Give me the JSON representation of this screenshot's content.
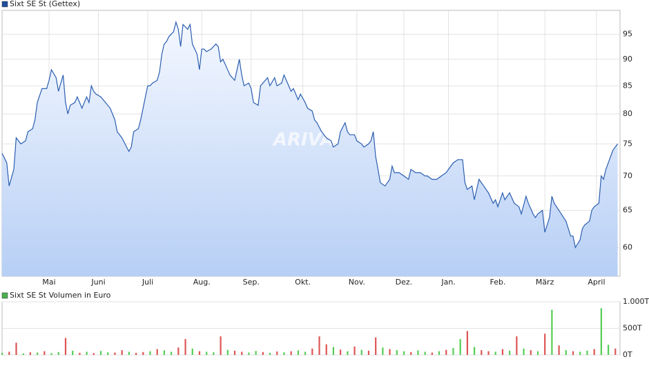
{
  "chart_data": [
    {
      "type": "line",
      "legend": "Sixt SE St (Gettex)",
      "legend_color": "#1f4e9c",
      "watermark": "ARIVA",
      "log_scale": true,
      "grid": true,
      "x": [
        0,
        2,
        3,
        5,
        6,
        8,
        10,
        11,
        13,
        14,
        15,
        17,
        19,
        20,
        21,
        23,
        24,
        26,
        27,
        28,
        29,
        31,
        32,
        33,
        34,
        36,
        37,
        38,
        39,
        40,
        42,
        44,
        46,
        47,
        48,
        49,
        51,
        53,
        54,
        55,
        56,
        58,
        59,
        61,
        62,
        63,
        64,
        66,
        67,
        68,
        69,
        70,
        71,
        73,
        74,
        75,
        76,
        77,
        79,
        80,
        81,
        83,
        84,
        85,
        86,
        87,
        89,
        91,
        92,
        93,
        94,
        96,
        97,
        99,
        100,
        101,
        102,
        103,
        105,
        106,
        107,
        109,
        110,
        111,
        113,
        114,
        116,
        117,
        119,
        120,
        121,
        123,
        124,
        126,
        127,
        129,
        130,
        132,
        133,
        134,
        136,
        138,
        140,
        141,
        143,
        144,
        146,
        147,
        148,
        150,
        151,
        153,
        154,
        156,
        157,
        158,
        159,
        160,
        161,
        163,
        164,
        165,
        166,
        167,
        169,
        171,
        173,
        174,
        176,
        178,
        180,
        181,
        183,
        185,
        187,
        189,
        190,
        192,
        194,
        196,
        197,
        198,
        200,
        201,
        203,
        205,
        207,
        209,
        210,
        211,
        213,
        214,
        216,
        218,
        220,
        221,
        223,
        224,
        226,
        227,
        228,
        230,
        231,
        233,
        234,
        235,
        237,
        239,
        240,
        241,
        242,
        243,
        244,
        246,
        247,
        248,
        250,
        251,
        252,
        254,
        255,
        256,
        257,
        259,
        260,
        261,
        262
      ],
      "series": [
        {
          "name": "Sixt SE St",
          "color": "#2a5db0",
          "values": [
            73.5,
            72,
            68.5,
            71,
            76,
            75,
            75.5,
            77,
            77.5,
            79,
            82,
            84.5,
            84.5,
            86,
            88,
            86.5,
            84,
            87,
            82,
            80,
            81.5,
            82,
            83,
            82,
            81,
            83,
            82,
            85,
            84,
            83.5,
            83,
            82,
            81,
            80,
            79,
            77,
            76,
            74.5,
            73.8,
            74.5,
            77,
            77.5,
            79,
            83,
            85,
            85,
            85.5,
            86,
            87.5,
            91,
            93,
            93.5,
            94.5,
            95.5,
            97.5,
            96,
            92.5,
            97,
            96,
            97,
            93,
            91,
            88,
            92,
            92,
            91.5,
            92,
            93,
            92.5,
            89.5,
            90,
            88,
            87,
            86,
            88,
            90,
            87,
            85,
            85.5,
            84.5,
            82,
            81.5,
            85,
            85.5,
            86.5,
            85,
            86.5,
            85,
            85.5,
            87,
            86,
            84,
            84.5,
            82.5,
            83.5,
            82,
            81,
            80.5,
            79,
            78.5,
            77,
            76,
            75.5,
            74.5,
            75,
            77,
            78.5,
            77,
            76.5,
            76.5,
            75.5,
            75,
            74.5,
            75,
            75.5,
            77,
            73,
            71,
            69,
            68.5,
            69,
            69.5,
            71.5,
            70.5,
            70.5,
            70,
            69.5,
            71,
            70.5,
            70.5,
            70,
            70,
            69.5,
            69.5,
            70,
            70.5,
            71,
            72,
            72.5,
            72.5,
            69,
            68,
            68.5,
            66.5,
            69.5,
            68.5,
            67.5,
            66,
            66.5,
            65.5,
            67.5,
            66.5,
            67.5,
            66,
            65.5,
            64.5,
            67,
            66,
            64.5,
            64,
            64.5,
            65,
            62,
            64,
            67,
            66,
            65,
            64,
            63.5,
            62.5,
            61.5,
            61.5,
            60,
            61,
            62.5,
            63,
            63.5,
            65,
            65.5,
            66,
            70,
            69.5,
            71,
            73,
            74,
            74.5,
            75
          ]
        }
      ],
      "xlim": [
        0,
        263
      ],
      "xticks": [
        {
          "value": 20,
          "label": "Mai"
        },
        {
          "value": 41,
          "label": "Juni"
        },
        {
          "value": 62,
          "label": "Juli"
        },
        {
          "value": 85,
          "label": "Aug."
        },
        {
          "value": 106,
          "label": "Sep."
        },
        {
          "value": 128,
          "label": "Okt."
        },
        {
          "value": 151,
          "label": "Nov."
        },
        {
          "value": 171,
          "label": "Dez."
        },
        {
          "value": 190,
          "label": "Jan."
        },
        {
          "value": 211,
          "label": "Feb."
        },
        {
          "value": 231,
          "label": "März"
        },
        {
          "value": 253,
          "label": "April"
        }
      ],
      "ylim": [
        56.4,
        100
      ],
      "yticks": [
        60,
        65,
        70,
        75,
        80,
        85,
        90,
        95
      ]
    },
    {
      "type": "bar",
      "legend": "Sixt SE St Volumen in Euro",
      "legend_color": "#4caf50",
      "grid": true,
      "x": [
        0,
        3,
        6,
        9,
        12,
        15,
        18,
        21,
        24,
        27,
        30,
        33,
        36,
        39,
        42,
        45,
        48,
        51,
        54,
        57,
        60,
        63,
        66,
        69,
        72,
        75,
        78,
        81,
        84,
        87,
        90,
        93,
        96,
        99,
        102,
        105,
        108,
        111,
        114,
        117,
        120,
        123,
        126,
        129,
        132,
        135,
        138,
        141,
        144,
        147,
        150,
        153,
        156,
        159,
        162,
        165,
        168,
        171,
        174,
        177,
        180,
        183,
        186,
        189,
        192,
        195,
        198,
        201,
        204,
        207,
        210,
        213,
        216,
        219,
        222,
        225,
        228,
        231,
        234,
        237,
        240,
        243,
        246,
        249,
        252,
        255,
        258,
        261
      ],
      "series": [
        {
          "name": "Sixt SE St Volumen in Euro",
          "values": [
            40,
            60,
            230,
            30,
            50,
            45,
            70,
            35,
            55,
            320,
            80,
            40,
            60,
            35,
            75,
            50,
            45,
            90,
            60,
            40,
            55,
            70,
            110,
            85,
            60,
            140,
            300,
            120,
            70,
            60,
            50,
            350,
            95,
            80,
            60,
            45,
            75,
            55,
            40,
            65,
            50,
            70,
            85,
            60,
            120,
            350,
            200,
            150,
            100,
            70,
            160,
            95,
            80,
            330,
            140,
            110,
            90,
            70,
            55,
            85,
            60,
            45,
            70,
            95,
            130,
            300,
            450,
            150,
            90,
            70,
            60,
            110,
            80,
            350,
            120,
            90,
            70,
            400,
            850,
            180,
            90,
            70,
            60,
            80,
            110,
            880,
            190,
            120
          ],
          "colors": [
            "#5c5",
            "#d55",
            "#d55",
            "#5c5",
            "#d55",
            "#5c5",
            "#d55",
            "#5c5",
            "#5c5",
            "#d55",
            "#5c5",
            "#d55",
            "#5c5",
            "#d55",
            "#5c5",
            "#5c5",
            "#d55",
            "#d55",
            "#5c5",
            "#d55",
            "#d55",
            "#5c5",
            "#d55",
            "#5c5",
            "#5c5",
            "#d55",
            "#d55",
            "#5c5",
            "#d55",
            "#5c5",
            "#5c5",
            "#d55",
            "#5c5",
            "#d55",
            "#d55",
            "#5c5",
            "#5c5",
            "#d55",
            "#5c5",
            "#d55",
            "#5c5",
            "#d55",
            "#5c5",
            "#5c5",
            "#d55",
            "#d55",
            "#d55",
            "#5c5",
            "#d55",
            "#5c5",
            "#d55",
            "#5c5",
            "#d55",
            "#d55",
            "#5c5",
            "#d55",
            "#5c5",
            "#5c5",
            "#d55",
            "#5c5",
            "#5c5",
            "#d55",
            "#5c5",
            "#d55",
            "#5c5",
            "#5c5",
            "#d55",
            "#5c5",
            "#d55",
            "#d55",
            "#5c5",
            "#d55",
            "#5c5",
            "#d55",
            "#5c5",
            "#d55",
            "#5c5",
            "#d55",
            "#5c5",
            "#d55",
            "#5c5",
            "#d55",
            "#5c5",
            "#5c5",
            "#d55",
            "#5c5",
            "#5c5",
            "#d55"
          ]
        }
      ],
      "xlim": [
        0,
        263
      ],
      "ylim": [
        0,
        1000
      ],
      "yticks": [
        {
          "value": 0,
          "label": "0T"
        },
        {
          "value": 500,
          "label": "500T"
        },
        {
          "value": 1000,
          "label": "1.000T"
        }
      ]
    }
  ]
}
